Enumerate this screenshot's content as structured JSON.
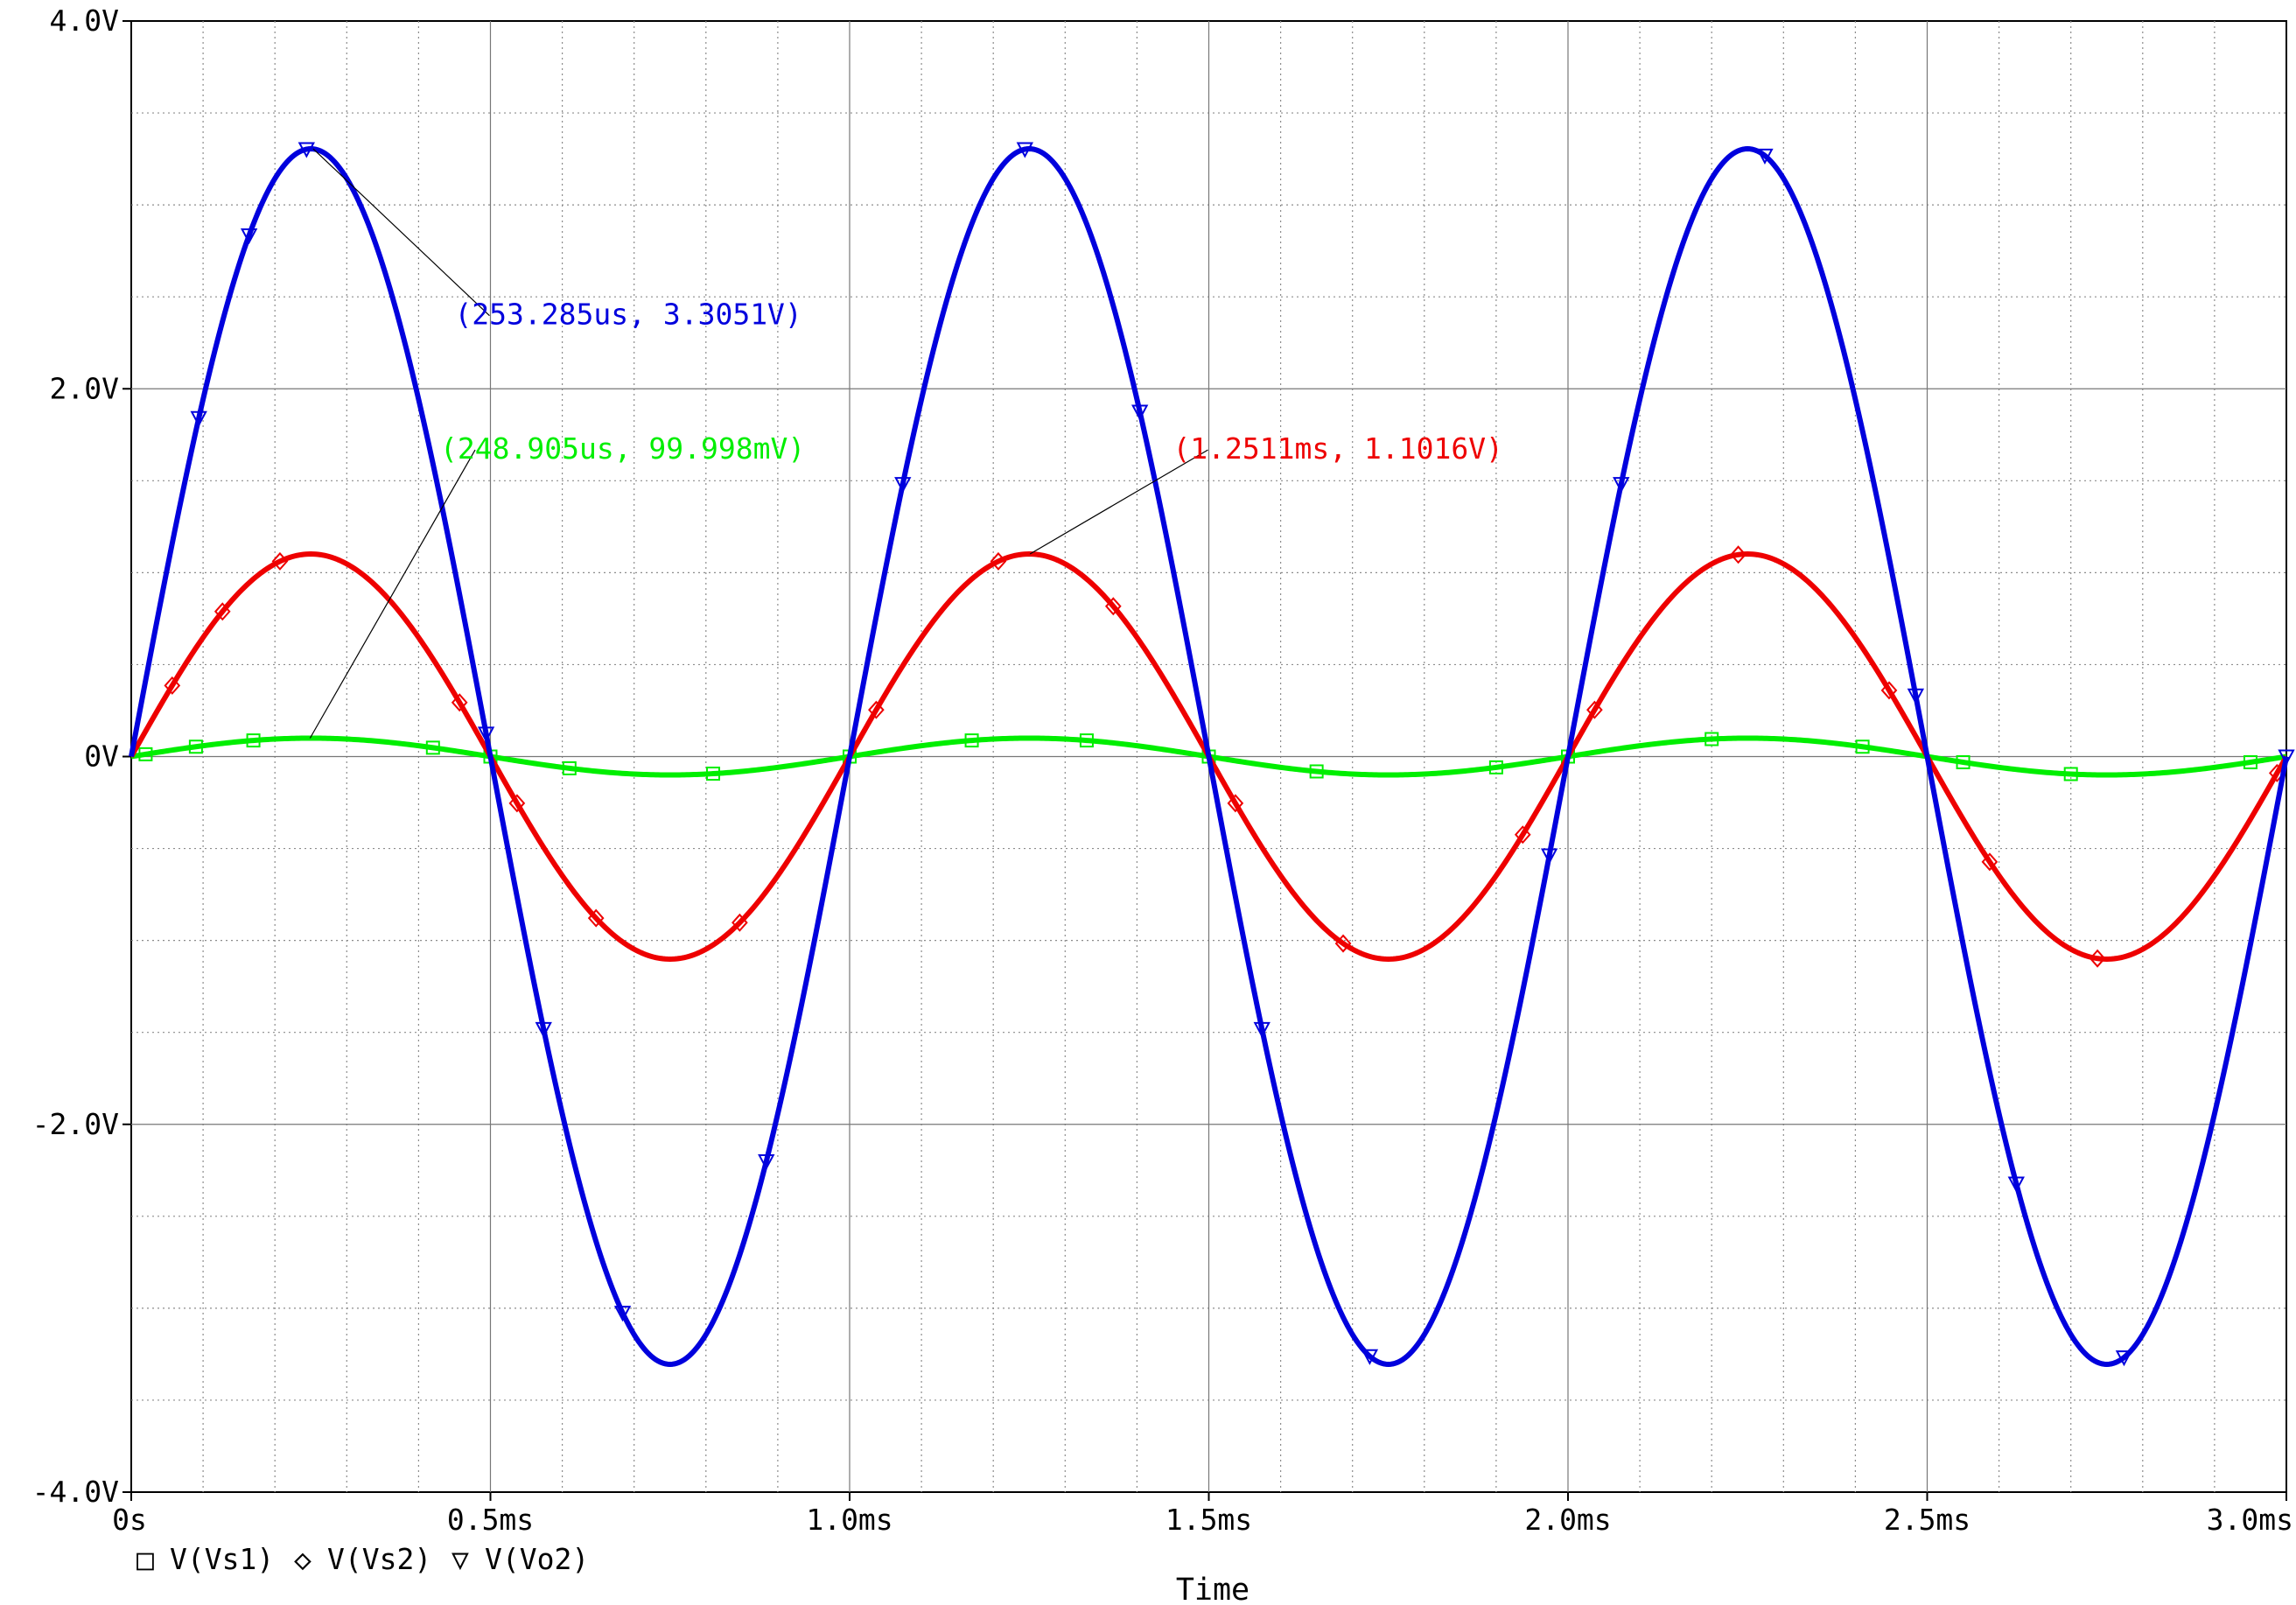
{
  "chart_data": {
    "type": "line",
    "xlabel": "Time",
    "ylabel": "",
    "xlim": [
      0,
      3.0
    ],
    "ylim": [
      -4.0,
      4.0
    ],
    "x_unit": "ms",
    "y_unit": "V",
    "grid": true,
    "xticks": [
      {
        "value": 0,
        "label": "0s"
      },
      {
        "value": 0.5,
        "label": "0.5ms"
      },
      {
        "value": 1.0,
        "label": "1.0ms"
      },
      {
        "value": 1.5,
        "label": "1.5ms"
      },
      {
        "value": 2.0,
        "label": "2.0ms"
      },
      {
        "value": 2.5,
        "label": "2.5ms"
      },
      {
        "value": 3.0,
        "label": "3.0ms"
      }
    ],
    "yticks": [
      {
        "value": 4.0,
        "label": "4.0V"
      },
      {
        "value": 2.0,
        "label": "2.0V"
      },
      {
        "value": 0,
        "label": "0V"
      },
      {
        "value": -2.0,
        "label": "-2.0V"
      },
      {
        "value": -4.0,
        "label": "-4.0V"
      }
    ],
    "legend_position": "bottom-left",
    "series": [
      {
        "name": "V(Vs1)",
        "color": "#00ee00",
        "marker": "square",
        "marker_glyph": "□",
        "x": [
          0,
          0.125,
          0.25,
          0.375,
          0.5,
          0.625,
          0.75,
          0.875,
          1.0,
          1.125,
          1.25,
          1.375,
          1.5,
          1.625,
          1.75,
          1.875,
          2.0,
          2.125,
          2.25,
          2.375,
          2.5,
          2.625,
          2.75,
          2.875,
          3.0
        ],
        "values": [
          0,
          0.0707,
          0.1,
          0.0707,
          0,
          -0.0707,
          -0.1,
          -0.0707,
          0,
          0.0707,
          0.1,
          0.0707,
          0,
          -0.0707,
          -0.1,
          -0.0707,
          0,
          0.0707,
          0.1,
          0.0707,
          0,
          -0.0707,
          -0.1,
          -0.0707,
          0
        ]
      },
      {
        "name": "V(Vs2)",
        "color": "#ee0000",
        "marker": "diamond",
        "marker_glyph": "◇",
        "x": [
          0,
          0.125,
          0.25,
          0.375,
          0.5,
          0.625,
          0.75,
          0.875,
          1.0,
          1.125,
          1.25,
          1.375,
          1.5,
          1.625,
          1.75,
          1.875,
          2.0,
          2.125,
          2.25,
          2.375,
          2.5,
          2.625,
          2.75,
          2.875,
          3.0
        ],
        "values": [
          0,
          0.7789,
          1.1016,
          0.7789,
          0,
          -0.7789,
          -1.1016,
          -0.7789,
          0,
          0.7789,
          1.1016,
          0.7789,
          0,
          -0.7789,
          -1.1016,
          -0.7789,
          0,
          0.7789,
          1.1016,
          0.7789,
          0,
          -0.7789,
          -1.1016,
          -0.7789,
          0
        ]
      },
      {
        "name": "V(Vo2)",
        "color": "#0000dd",
        "marker": "triangle-down",
        "marker_glyph": "▽",
        "x": [
          0,
          0.125,
          0.25,
          0.375,
          0.5,
          0.625,
          0.75,
          0.875,
          1.0,
          1.125,
          1.25,
          1.375,
          1.5,
          1.625,
          1.75,
          1.875,
          2.0,
          2.125,
          2.25,
          2.375,
          2.5,
          2.625,
          2.75,
          2.875,
          3.0
        ],
        "values": [
          0,
          2.337,
          3.3051,
          2.337,
          0,
          -2.337,
          -3.3051,
          -2.337,
          0,
          2.337,
          3.3051,
          2.337,
          0,
          -2.337,
          -3.3051,
          -2.337,
          0,
          2.337,
          3.3051,
          2.337,
          0,
          -2.337,
          -3.3051,
          -2.337,
          0
        ]
      }
    ],
    "annotations": [
      {
        "text": "(253.285us, 3.3051V)",
        "color": "#0000dd",
        "x": 0.253285,
        "y": 3.3051,
        "label_x": 0.45,
        "label_y": 2.35
      },
      {
        "text": "(248.905us, 99.998mV)",
        "color": "#00ee00",
        "x": 0.248905,
        "y": 0.1,
        "label_x": 0.43,
        "label_y": 1.62
      },
      {
        "text": "(1.2511ms, 1.1016V)",
        "color": "#ee0000",
        "x": 1.2511,
        "y": 1.1016,
        "label_x": 1.45,
        "label_y": 1.62
      }
    ]
  }
}
